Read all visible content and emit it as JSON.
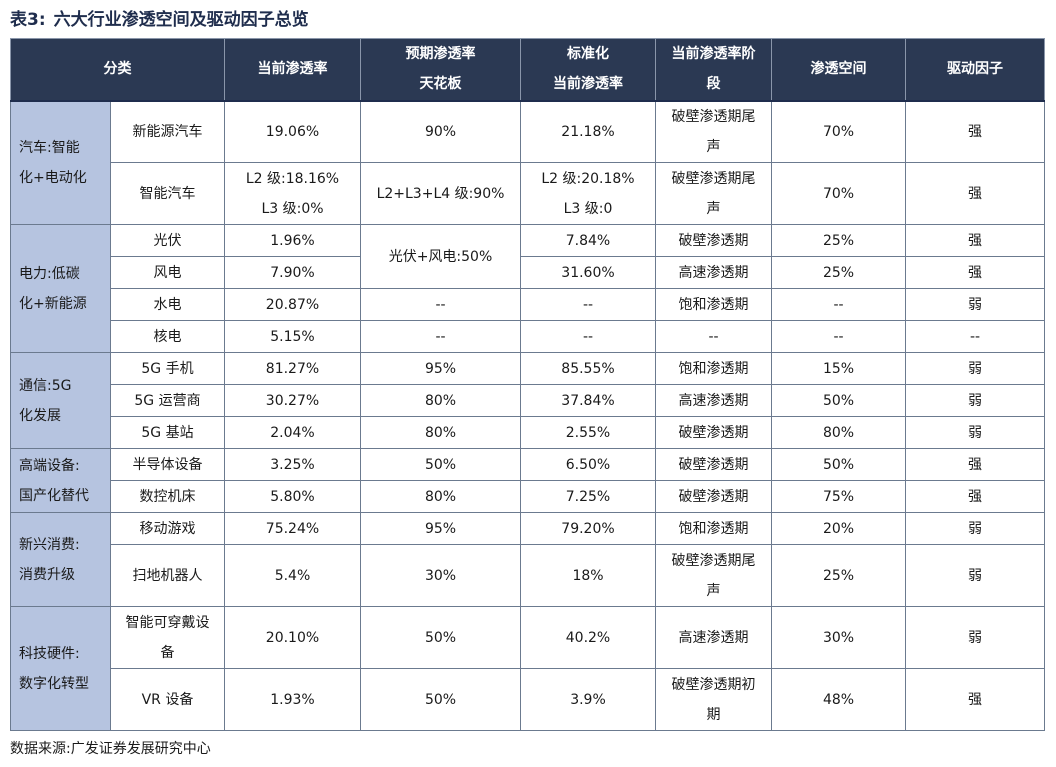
{
  "title": {
    "num": "表3:",
    "text": "六大行业渗透空间及驱动因子总览"
  },
  "headers": {
    "category": "分类",
    "current": "当前渗透率",
    "ceiling_1": "预期渗透率",
    "ceiling_2": "天花板",
    "std_1": "标准化",
    "std_2": "当前渗透率",
    "stage_1": "当前渗透率阶",
    "stage_2": "段",
    "space": "渗透空间",
    "driver": "驱动因子"
  },
  "groups": [
    {
      "cat_1": "汽车:智能",
      "cat_2": "化+电动化",
      "rows": [
        {
          "name": "新能源汽车",
          "current": "19.06%",
          "ceiling": "90%",
          "std": "21.18%",
          "stage_1": "破壁渗透期尾",
          "stage_2": "声",
          "space": "70%",
          "driver": "强"
        },
        {
          "name": "智能汽车",
          "current_1": "L2 级:18.16%",
          "current_2": "L3 级:0%",
          "ceiling": "L2+L3+L4 级:90%",
          "std_1": "L2 级:20.18%",
          "std_2": "L3 级:0",
          "stage_1": "破壁渗透期尾",
          "stage_2": "声",
          "space": "70%",
          "driver": "强"
        }
      ]
    },
    {
      "cat_1": "电力:低碳",
      "cat_2": "化+新能源",
      "rows": [
        {
          "name": "光伏",
          "current": "1.96%",
          "ceiling": "光伏+风电:50%",
          "std": "7.84%",
          "stage": "破壁渗透期",
          "space": "25%",
          "driver": "强"
        },
        {
          "name": "风电",
          "current": "7.90%",
          "std": "31.60%",
          "stage": "高速渗透期",
          "space": "25%",
          "driver": "强"
        },
        {
          "name": "水电",
          "current": "20.87%",
          "ceiling": "--",
          "std": "--",
          "stage": "饱和渗透期",
          "space": "--",
          "driver": "弱"
        },
        {
          "name": "核电",
          "current": "5.15%",
          "ceiling": "--",
          "std": "--",
          "stage": "--",
          "space": "--",
          "driver": "--"
        }
      ]
    },
    {
      "cat_1": "通信:5G",
      "cat_2": "化发展",
      "rows": [
        {
          "name": "5G 手机",
          "current": "81.27%",
          "ceiling": "95%",
          "std": "85.55%",
          "stage": "饱和渗透期",
          "space": "15%",
          "driver": "弱"
        },
        {
          "name": "5G 运营商",
          "current": "30.27%",
          "ceiling": "80%",
          "std": "37.84%",
          "stage": "高速渗透期",
          "space": "50%",
          "driver": "弱"
        },
        {
          "name": "5G 基站",
          "current": "2.04%",
          "ceiling": "80%",
          "std": "2.55%",
          "stage": "破壁渗透期",
          "space": "80%",
          "driver": "弱"
        }
      ]
    },
    {
      "cat_1": "高端设备:",
      "cat_2": "国产化替代",
      "rows": [
        {
          "name": "半导体设备",
          "current": "3.25%",
          "ceiling": "50%",
          "std": "6.50%",
          "stage": "破壁渗透期",
          "space": "50%",
          "driver": "强"
        },
        {
          "name": "数控机床",
          "current": "5.80%",
          "ceiling": "80%",
          "std": "7.25%",
          "stage": "破壁渗透期",
          "space": "75%",
          "driver": "强"
        }
      ]
    },
    {
      "cat_1": "新兴消费:",
      "cat_2": "消费升级",
      "rows": [
        {
          "name": "移动游戏",
          "current": "75.24%",
          "ceiling": "95%",
          "std": "79.20%",
          "stage": "饱和渗透期",
          "space": "20%",
          "driver": "弱"
        },
        {
          "name": "扫地机器人",
          "current": "5.4%",
          "ceiling": "30%",
          "std": "18%",
          "stage_1": "破壁渗透期尾",
          "stage_2": "声",
          "space": "25%",
          "driver": "弱"
        }
      ]
    },
    {
      "cat_1": "科技硬件:",
      "cat_2": "数字化转型",
      "rows": [
        {
          "name_1": "智能可穿戴设",
          "name_2": "备",
          "current": "20.10%",
          "ceiling": "50%",
          "std": "40.2%",
          "stage": "高速渗透期",
          "space": "30%",
          "driver": "弱"
        },
        {
          "name": "VR 设备",
          "current": "1.93%",
          "ceiling": "50%",
          "std": "3.9%",
          "stage_1": "破壁渗透期初",
          "stage_2": "期",
          "space": "48%",
          "driver": "强"
        }
      ]
    }
  ],
  "source": "数据来源:广发证券发展研究中心"
}
